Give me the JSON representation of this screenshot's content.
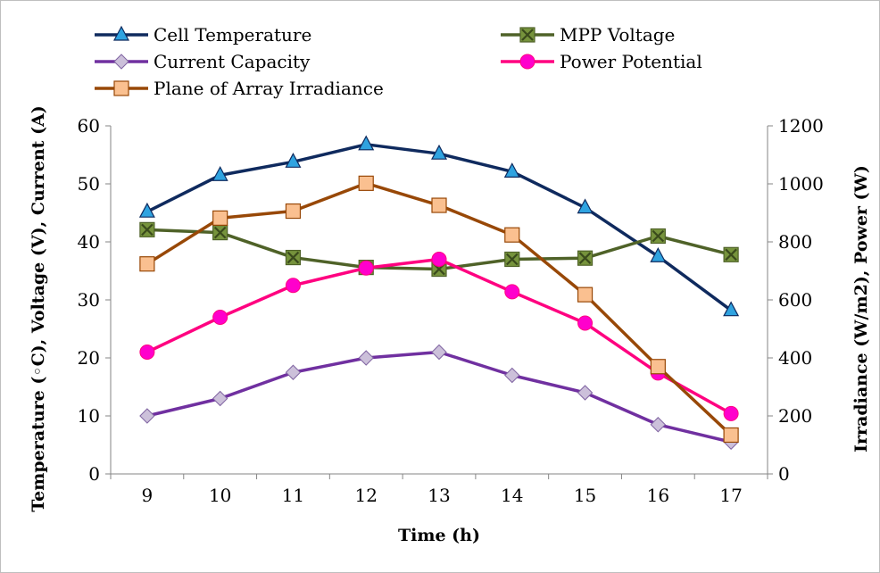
{
  "chart_data": {
    "type": "line",
    "xlabel": "Time (h)",
    "ylabel_left": "Temperature (◦C), Voltage (V), Current (A)",
    "ylabel_right": "Irradiance (W/m2),  Power (W)",
    "x": [
      9,
      10,
      11,
      12,
      13,
      14,
      15,
      16,
      17
    ],
    "ylim_left": [
      0,
      60
    ],
    "ylim_right": [
      0,
      1200
    ],
    "left_ticks": [
      "0",
      "10",
      "20",
      "30",
      "40",
      "50",
      "60"
    ],
    "right_ticks": [
      "0",
      "200",
      "400",
      "600",
      "800",
      "1000",
      "1200"
    ],
    "grid": false,
    "legend_position": "top",
    "series": [
      {
        "name": "Cell Temperature",
        "axis": "left",
        "color": "#0f2a5e",
        "marker": "triangle",
        "marker_fill": "#2fa3e0",
        "values": [
          45.2,
          51.5,
          53.8,
          56.8,
          55.2,
          52.1,
          45.9,
          37.5,
          28.2
        ]
      },
      {
        "name": "MPP Voltage",
        "axis": "left",
        "color": "#4f6228",
        "marker": "x-square",
        "marker_fill": "#76933c",
        "values": [
          42.1,
          41.6,
          37.3,
          35.6,
          35.3,
          37.0,
          37.2,
          41.0,
          37.8
        ]
      },
      {
        "name": "Current Capacity",
        "axis": "left",
        "color": "#7030a0",
        "marker": "diamond",
        "marker_fill": "#ccc0da",
        "values": [
          10,
          13,
          17.5,
          20,
          21,
          17,
          14,
          8.5,
          5.5
        ]
      },
      {
        "name": "Power  Potential",
        "axis": "right",
        "color": "#ff0080",
        "marker": "circle",
        "marker_fill": "#ff00cc",
        "values": [
          420,
          540,
          650,
          710,
          740,
          628,
          520,
          348,
          208
        ]
      },
      {
        "name": "Plane of Array Irradiance",
        "axis": "right",
        "color": "#984807",
        "marker": "square",
        "marker_fill": "#fac090",
        "values": [
          724,
          882,
          906,
          1002,
          926,
          824,
          618,
          370,
          134
        ]
      }
    ]
  }
}
